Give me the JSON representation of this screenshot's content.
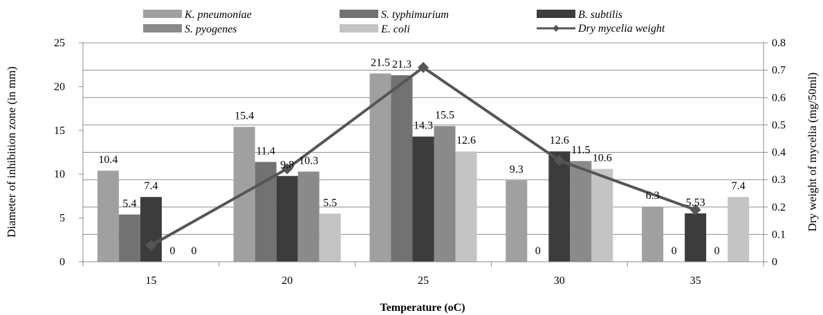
{
  "chart_data": {
    "type": "bar",
    "xlabel": "Temperature (oC)",
    "ylabel": "Diameter of inhibition zone (in mm)",
    "ylabel_right": "Dry weight of mycelia  (mg/50ml)",
    "categories": [
      "15",
      "20",
      "25",
      "30",
      "35"
    ],
    "ylim": [
      0,
      25
    ],
    "yticks": [
      "0",
      "5",
      "10",
      "15",
      "20",
      "25"
    ],
    "ylim_right": [
      0,
      0.8
    ],
    "yticks_right": [
      "0",
      "0.1",
      "0.2",
      "0.3",
      "0.4",
      "0.5",
      "0.6",
      "0.7",
      "0.8"
    ],
    "grid": true,
    "legend_position": "top",
    "series": [
      {
        "name": "K. pneumoniae",
        "color": "#a0a0a0",
        "values": [
          10.4,
          15.4,
          21.5,
          9.3,
          6.3
        ],
        "labels": [
          "10.4",
          "15.4",
          "21.5",
          "9.3",
          "6.3"
        ]
      },
      {
        "name": "S. typhimurium",
        "color": "#727272",
        "values": [
          5.4,
          11.4,
          21.3,
          0,
          0
        ],
        "labels": [
          "5.4",
          "11.4",
          "21.3",
          "0",
          "0"
        ]
      },
      {
        "name": "B. subtilis",
        "color": "#3c3c3c",
        "values": [
          7.4,
          9.8,
          14.3,
          12.6,
          5.53
        ],
        "labels": [
          "7.4",
          "9.8",
          "14.3",
          "12.6",
          "5.53"
        ]
      },
      {
        "name": "S. pyogenes",
        "color": "#8a8a8a",
        "values": [
          0,
          10.3,
          15.5,
          11.5,
          0
        ],
        "labels": [
          "0",
          "10.3",
          "15.5",
          "11.5",
          "0"
        ]
      },
      {
        "name": "E. coli",
        "color": "#c4c4c4",
        "values": [
          0,
          5.5,
          12.6,
          10.6,
          7.4
        ],
        "labels": [
          "0",
          "5.5",
          "12.6",
          "10.6",
          "7.4"
        ]
      }
    ],
    "line_series": {
      "name": "Dry mycelia weight",
      "color": "#555555",
      "axis": "right",
      "values": [
        0.06,
        0.34,
        0.71,
        0.37,
        0.19
      ]
    }
  }
}
